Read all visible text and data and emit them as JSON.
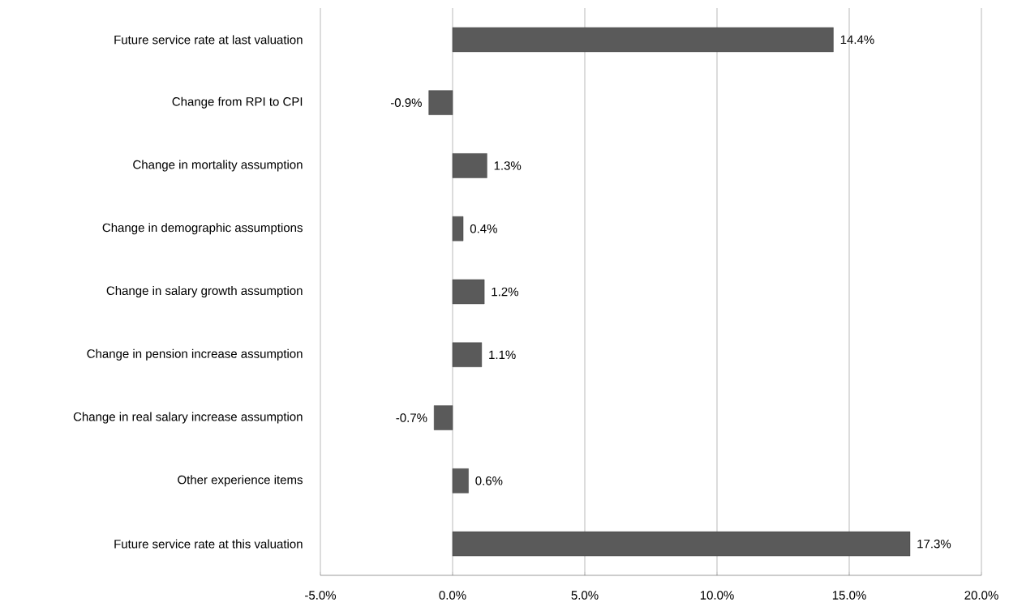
{
  "chart_data": {
    "type": "bar",
    "orientation": "horizontal",
    "categories": [
      "Future service rate at last valuation",
      "Change from RPI to CPI",
      "Change in mortality assumption",
      "Change in demographic assumptions",
      "Change in salary growth assumption",
      "Change in pension increase assumption",
      "Change in real salary increase assumption",
      "Other experience items",
      "Future service rate at this valuation"
    ],
    "values": [
      14.4,
      -0.9,
      1.3,
      0.4,
      1.2,
      1.1,
      -0.7,
      0.6,
      17.3
    ],
    "value_labels": [
      "14.4%",
      "-0.9%",
      "1.3%",
      "0.4%",
      "1.2%",
      "1.1%",
      "-0.7%",
      "0.6%",
      "17.3%"
    ],
    "color": "#5a5a5a",
    "xlim": [
      -5,
      20
    ],
    "xticks": [
      {
        "value": -5,
        "label": "-5.0%"
      },
      {
        "value": 0,
        "label": "0.0%"
      },
      {
        "value": 5,
        "label": "5.0%"
      },
      {
        "value": 10,
        "label": "10.0%"
      },
      {
        "value": 15,
        "label": "15.0%"
      },
      {
        "value": 20,
        "label": "20.0%"
      }
    ],
    "grid": "x"
  }
}
